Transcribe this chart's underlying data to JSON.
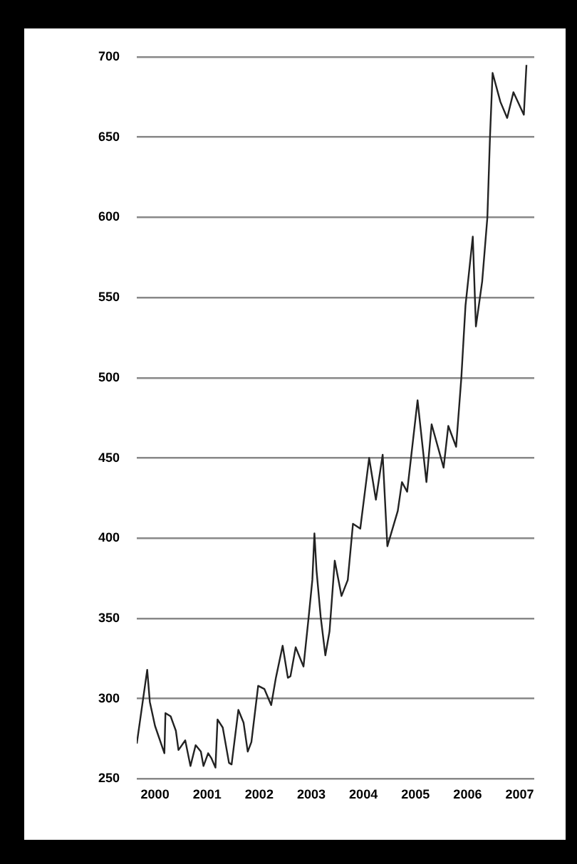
{
  "chart_data": {
    "type": "line",
    "x": [
      1999.65,
      1999.85,
      1999.9,
      2000.0,
      2000.18,
      2000.2,
      2000.3,
      2000.4,
      2000.45,
      2000.58,
      2000.68,
      2000.78,
      2000.88,
      2000.93,
      2001.02,
      2001.08,
      2001.16,
      2001.2,
      2001.3,
      2001.42,
      2001.47,
      2001.6,
      2001.7,
      2001.78,
      2001.85,
      2001.98,
      2002.1,
      2002.23,
      2002.32,
      2002.45,
      2002.55,
      2002.6,
      2002.7,
      2002.85,
      2002.95,
      2003.02,
      2003.06,
      2003.1,
      2003.18,
      2003.27,
      2003.35,
      2003.45,
      2003.58,
      2003.7,
      2003.8,
      2003.94,
      2004.11,
      2004.24,
      2004.37,
      2004.46,
      2004.66,
      2004.74,
      2004.84,
      2005.04,
      2005.21,
      2005.31,
      2005.54,
      2005.63,
      2005.78,
      2005.88,
      2005.96,
      2006.1,
      2006.16,
      2006.28,
      2006.38,
      2006.43,
      2006.48,
      2006.63,
      2006.76,
      2006.88,
      2007.08,
      2007.13
    ],
    "series": [
      {
        "color": "#222222",
        "values": [
          272,
          318,
          298,
          283,
          266,
          291,
          289,
          280,
          268,
          274,
          258,
          271,
          267,
          258,
          266,
          263,
          257,
          287,
          282,
          260,
          259,
          293,
          285,
          267,
          273,
          308,
          306,
          296,
          313,
          333,
          313,
          314,
          332,
          320,
          351,
          374,
          403,
          380,
          351,
          327,
          342,
          386,
          364,
          374,
          409,
          406,
          450,
          424,
          452,
          395,
          417,
          435,
          429,
          486,
          435,
          471,
          444,
          470,
          457,
          500,
          545,
          588,
          532,
          560,
          600,
          650,
          690,
          672,
          662,
          678,
          664,
          695
        ]
      }
    ],
    "xlim": [
      1999.65,
      2007.28
    ],
    "xticks": [
      2000,
      2001,
      2002,
      2003,
      2004,
      2005,
      2006,
      2007
    ],
    "ylim": [
      250,
      700
    ],
    "yticks": [
      250,
      300,
      350,
      400,
      450,
      500,
      550,
      600,
      650,
      700
    ],
    "grid": "y",
    "legend": false,
    "marker": "none",
    "line_style": "solid"
  }
}
